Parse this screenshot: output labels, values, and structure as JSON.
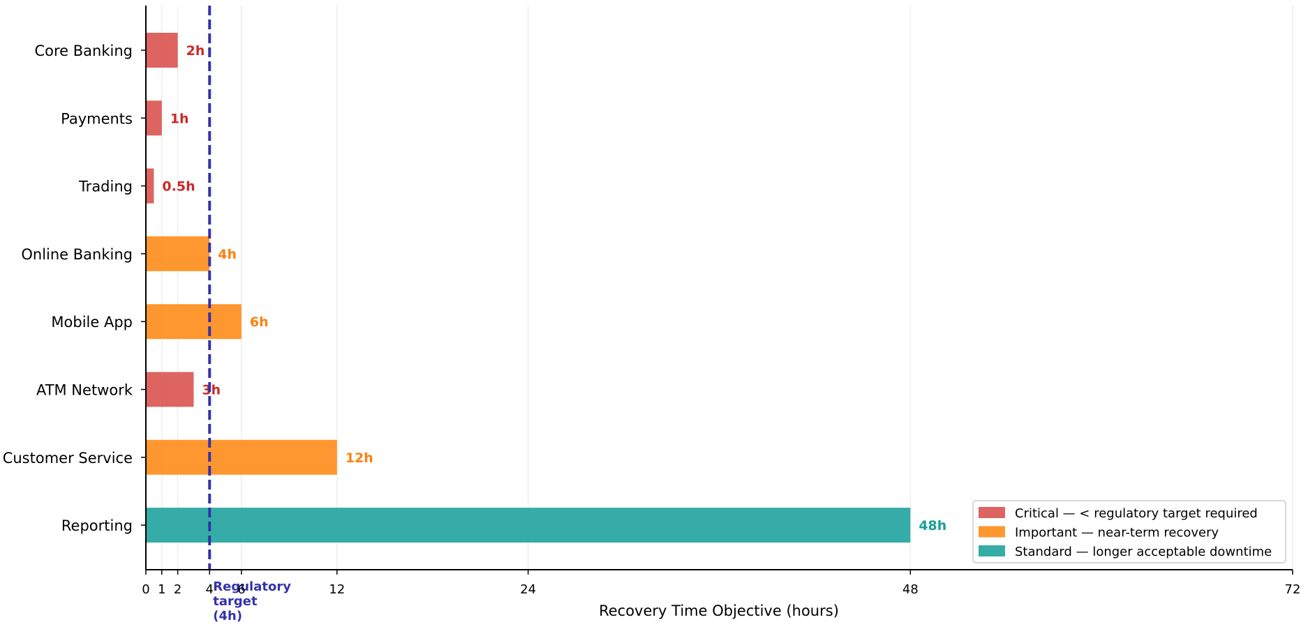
{
  "chart_data": {
    "type": "bar",
    "orientation": "horizontal",
    "categories": [
      "Core Banking",
      "Payments",
      "Trading",
      "Online Banking",
      "Mobile App",
      "ATM Network",
      "Customer Service",
      "Reporting"
    ],
    "values": [
      2,
      1,
      0.5,
      4,
      6,
      3,
      12,
      48
    ],
    "value_labels": [
      "2h",
      "1h",
      "0.5h",
      "4h",
      "6h",
      "3h",
      "12h",
      "48h"
    ],
    "tiers": [
      "critical",
      "critical",
      "critical",
      "important",
      "important",
      "critical",
      "important",
      "standard"
    ],
    "xlabel": "Recovery Time Objective (hours)",
    "ylabel": "",
    "xlim": [
      0,
      72
    ],
    "xticks": [
      0,
      1,
      2,
      4,
      6,
      12,
      24,
      48,
      72
    ],
    "grid": "vertical",
    "reference_line": {
      "value": 4,
      "label_lines": [
        "Regulatory",
        "target",
        "(4h)"
      ],
      "color": "#3333aa"
    },
    "legend": {
      "placement": "lower-right",
      "items": [
        {
          "tier": "critical",
          "label": "Critical — < regulatory target required",
          "color": "#d9534f"
        },
        {
          "tier": "important",
          "label": "Important — near-term recovery",
          "color": "#ff8c1a"
        },
        {
          "tier": "standard",
          "label": "Standard — longer acceptable downtime",
          "color": "#20a39e"
        }
      ]
    },
    "label_colors": {
      "critical": "#cc2929",
      "important": "#ff7f0e",
      "standard": "#179e99"
    }
  }
}
